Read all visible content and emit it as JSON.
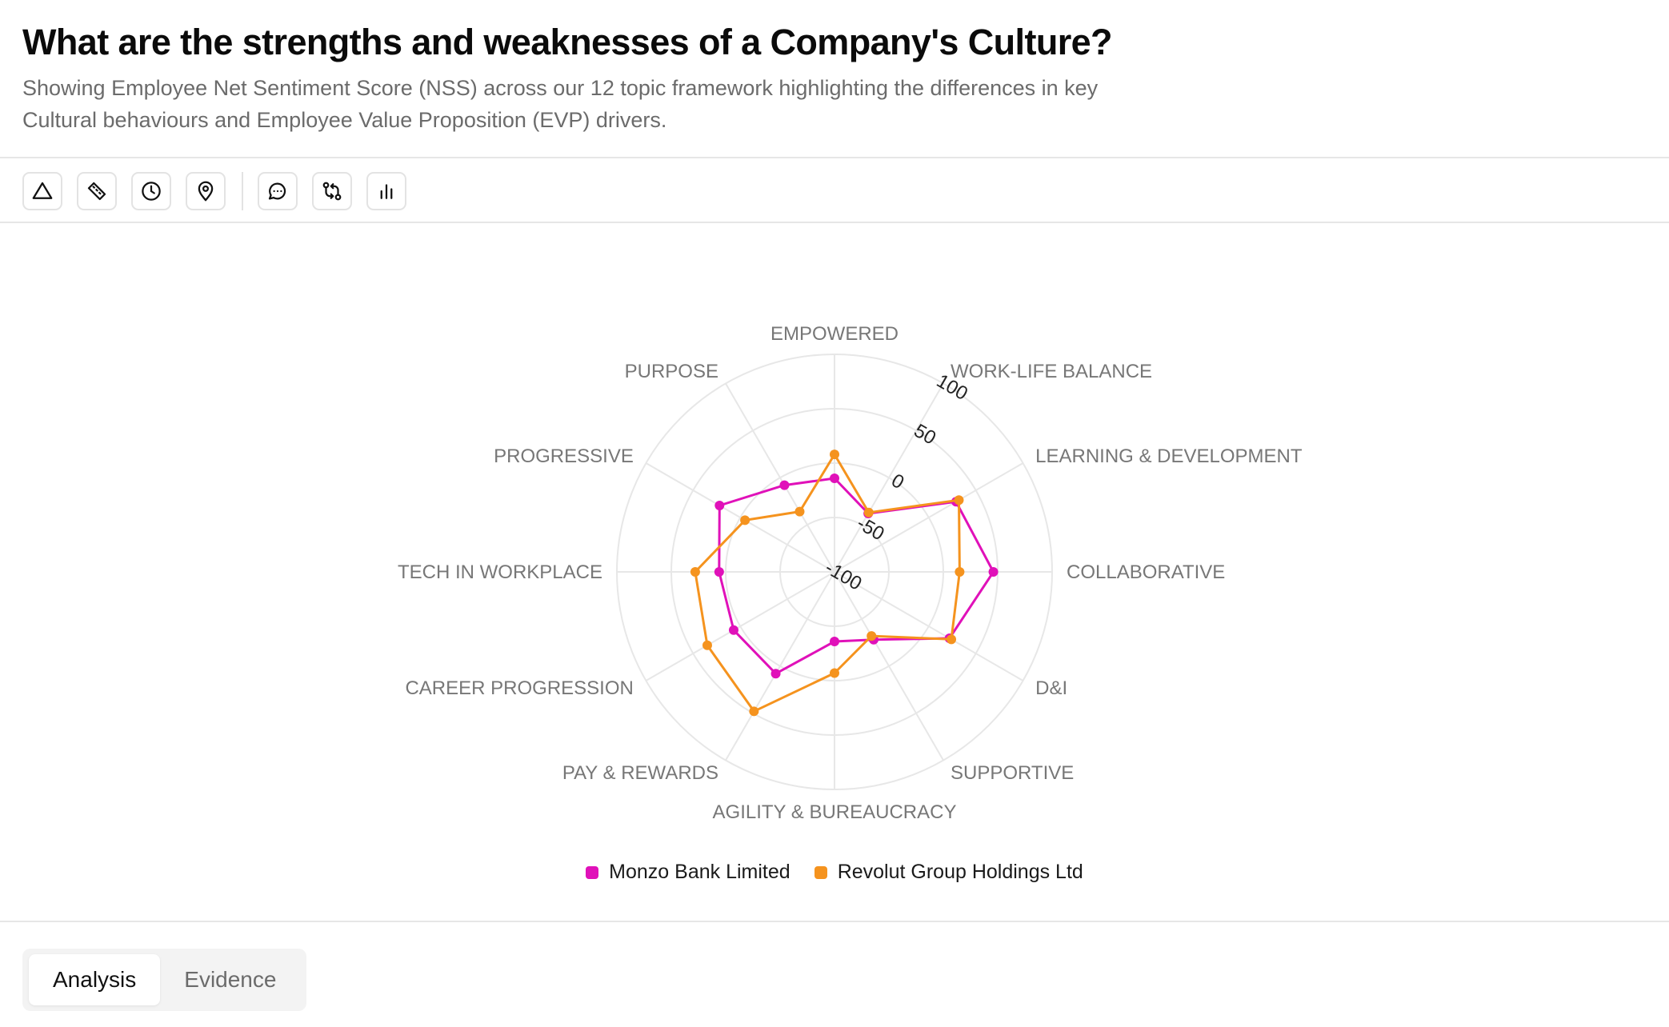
{
  "header": {
    "title": "What are the strengths and weaknesses of a Company's Culture?",
    "subtitle": "Showing Employee Net Sentiment Score (NSS) across our 12 topic framework highlighting the differences in key Cultural behaviours and Employee Value Proposition (EVP) drivers."
  },
  "toolbar": {
    "icons": [
      "triangle-icon",
      "ruler-icon",
      "clock-icon",
      "map-pin-icon",
      "chat-bubble-icon",
      "compare-arrows-icon",
      "bar-chart-icon"
    ]
  },
  "tabs": [
    {
      "label": "Analysis",
      "active": true
    },
    {
      "label": "Evidence",
      "active": false
    }
  ],
  "chart_data": {
    "type": "radar",
    "categories": [
      "EMPOWERED",
      "WORK-LIFE BALANCE",
      "LEARNING & DEVELOPMENT",
      "COLLABORATIVE",
      "D&I",
      "SUPPORTIVE",
      "AGILITY & BUREAUCRACY",
      "PAY & REWARDS",
      "CAREER PROGRESSION",
      "TECH IN WORKPLACE",
      "PROGRESSIVE",
      "PURPOSE"
    ],
    "radial_ticks": [
      -100,
      -50,
      0,
      50,
      100
    ],
    "rlim": [
      -100,
      100
    ],
    "grid": true,
    "legend_position": "bottom",
    "series": [
      {
        "name": "Monzo Bank Limited",
        "color": "#e011b9",
        "values": [
          -14,
          -38,
          29,
          46,
          22,
          -28,
          -36,
          8,
          7,
          6,
          22,
          -8
        ]
      },
      {
        "name": "Revolut Group Holdings Ltd",
        "color": "#f5931e",
        "values": [
          8,
          -37,
          32,
          15,
          24,
          -32,
          -7,
          48,
          35,
          28,
          -5,
          -36
        ]
      }
    ]
  }
}
